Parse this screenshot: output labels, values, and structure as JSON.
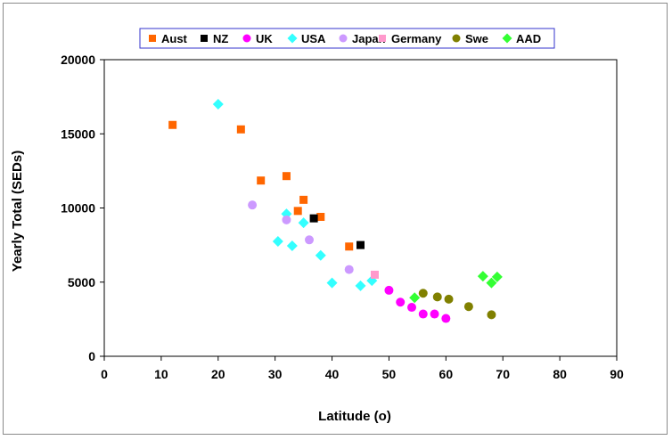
{
  "chart_data": {
    "type": "scatter",
    "title": "",
    "xlabel": "Latitude (o)",
    "ylabel": "Yearly Total (SEDs)",
    "xlim": [
      0,
      90
    ],
    "ylim": [
      0,
      20000
    ],
    "xticks": [
      0,
      10,
      20,
      30,
      40,
      50,
      60,
      70,
      80,
      90
    ],
    "yticks": [
      0,
      5000,
      10000,
      15000,
      20000
    ],
    "xtick_labels": [
      "0",
      "10",
      "20",
      "30",
      "40",
      "50",
      "60",
      "70",
      "80",
      "90"
    ],
    "ytick_labels": [
      "0",
      "5000",
      "10000",
      "15000",
      "20000"
    ],
    "grid": false,
    "legend_position": "top",
    "series": [
      {
        "name": "Aust",
        "marker": "square",
        "color": "#ff6600",
        "points": [
          {
            "x": 12,
            "y": 15600
          },
          {
            "x": 24,
            "y": 15300
          },
          {
            "x": 27.5,
            "y": 11850
          },
          {
            "x": 32,
            "y": 12150
          },
          {
            "x": 34,
            "y": 9800
          },
          {
            "x": 35,
            "y": 10550
          },
          {
            "x": 38,
            "y": 9400
          },
          {
            "x": 43,
            "y": 7400
          }
        ]
      },
      {
        "name": "NZ",
        "marker": "square",
        "color": "#000000",
        "points": [
          {
            "x": 36.8,
            "y": 9300
          },
          {
            "x": 45,
            "y": 7500
          }
        ]
      },
      {
        "name": "UK",
        "marker": "circle",
        "color": "#ff00ff",
        "points": [
          {
            "x": 50,
            "y": 4450
          },
          {
            "x": 52,
            "y": 3650
          },
          {
            "x": 54,
            "y": 3300
          },
          {
            "x": 56,
            "y": 2850
          },
          {
            "x": 58,
            "y": 2850
          },
          {
            "x": 60,
            "y": 2550
          }
        ]
      },
      {
        "name": "USA",
        "marker": "diamond",
        "color": "#33ffff",
        "points": [
          {
            "x": 20,
            "y": 17000
          },
          {
            "x": 30.5,
            "y": 7750
          },
          {
            "x": 32,
            "y": 9600
          },
          {
            "x": 33,
            "y": 7450
          },
          {
            "x": 35,
            "y": 9000
          },
          {
            "x": 38,
            "y": 6800
          },
          {
            "x": 40,
            "y": 4950
          },
          {
            "x": 45,
            "y": 4750
          },
          {
            "x": 47,
            "y": 5100
          }
        ]
      },
      {
        "name": "Japan",
        "marker": "circle",
        "color": "#cc99ff",
        "points": [
          {
            "x": 26,
            "y": 10200
          },
          {
            "x": 32,
            "y": 9200
          },
          {
            "x": 36,
            "y": 7850
          },
          {
            "x": 43,
            "y": 5850
          }
        ]
      },
      {
        "name": "Germany",
        "marker": "square",
        "color": "#ff99cc",
        "points": [
          {
            "x": 47.5,
            "y": 5500
          }
        ]
      },
      {
        "name": "Swe",
        "marker": "circle",
        "color": "#808000",
        "points": [
          {
            "x": 56,
            "y": 4250
          },
          {
            "x": 58.5,
            "y": 4000
          },
          {
            "x": 60.5,
            "y": 3850
          },
          {
            "x": 64,
            "y": 3350
          },
          {
            "x": 68,
            "y": 2800
          }
        ]
      },
      {
        "name": "AAD",
        "marker": "diamond",
        "color": "#33ff33",
        "points": [
          {
            "x": 54.5,
            "y": 3950
          },
          {
            "x": 66.5,
            "y": 5400
          },
          {
            "x": 68,
            "y": 4950
          },
          {
            "x": 69,
            "y": 5350
          }
        ]
      }
    ]
  }
}
